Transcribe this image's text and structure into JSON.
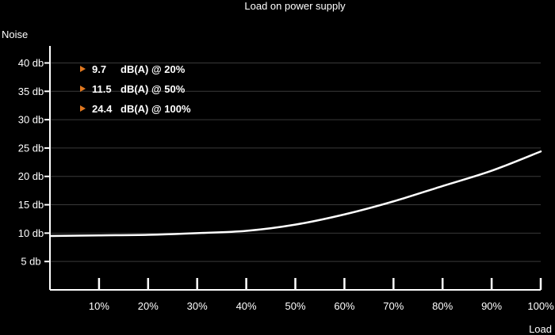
{
  "chart_data": {
    "type": "line",
    "title": "Load on power supply",
    "ylabel": "Noise",
    "xlabel": "Load",
    "x_ticks": [
      {
        "value": 10,
        "label": "10%"
      },
      {
        "value": 20,
        "label": "20%"
      },
      {
        "value": 30,
        "label": "30%"
      },
      {
        "value": 40,
        "label": "40%"
      },
      {
        "value": 50,
        "label": "50%"
      },
      {
        "value": 60,
        "label": "60%"
      },
      {
        "value": 70,
        "label": "70%"
      },
      {
        "value": 80,
        "label": "80%"
      },
      {
        "value": 90,
        "label": "90%"
      },
      {
        "value": 100,
        "label": "100%"
      }
    ],
    "y_ticks": [
      {
        "value": 5,
        "label": "5 db"
      },
      {
        "value": 10,
        "label": "10 db"
      },
      {
        "value": 15,
        "label": "15 db"
      },
      {
        "value": 20,
        "label": "20 db"
      },
      {
        "value": 25,
        "label": "25 db"
      },
      {
        "value": 30,
        "label": "30 db"
      },
      {
        "value": 35,
        "label": "35 db"
      },
      {
        "value": 40,
        "label": "40 db"
      }
    ],
    "xlim": [
      0,
      100
    ],
    "ylim": [
      0,
      43
    ],
    "grid": true,
    "series": [
      {
        "x": [
          0,
          10,
          20,
          30,
          40,
          50,
          60,
          70,
          80,
          90,
          100
        ],
        "y": [
          9.5,
          9.6,
          9.7,
          10.0,
          10.4,
          11.5,
          13.3,
          15.6,
          18.3,
          21.0,
          24.4
        ],
        "color": "#ffffff"
      }
    ],
    "annotations": [
      {
        "value": "9.7",
        "text": "dB(A) @ 20%"
      },
      {
        "value": "11.5",
        "text": "dB(A) @ 50%"
      },
      {
        "value": "24.4",
        "text": "dB(A) @ 100%"
      }
    ],
    "colors": {
      "background": "#000000",
      "line": "#ffffff",
      "grid": "#3a3a3a",
      "marker": "#e07820"
    }
  }
}
